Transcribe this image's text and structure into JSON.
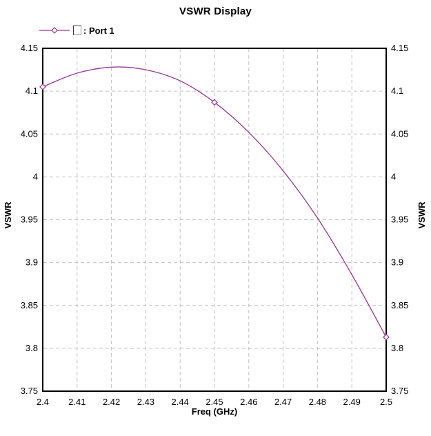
{
  "title": "VSWR Display",
  "legend": {
    "symbol": "diamond-line-marker",
    "box_glyph": "box-glyph",
    "label": ": Port 1",
    "series_name": "Port 1"
  },
  "colors": {
    "curve": "#993399",
    "grid": "#c0c0c0",
    "frame": "#000000",
    "text": "#000000",
    "background": "#ffffff"
  },
  "chart_data": {
    "type": "line",
    "title": "VSWR Display",
    "xlabel": "Freq (GHz)",
    "ylabel_left": "VSWR",
    "ylabel_right": "VSWR",
    "xlim": [
      2.4,
      2.5
    ],
    "ylim": [
      3.75,
      4.15
    ],
    "grid": true,
    "grid_style": "dashed",
    "legend_position": "top-left",
    "x_ticks": [
      2.4,
      2.41,
      2.42,
      2.43,
      2.44,
      2.45,
      2.46,
      2.47,
      2.48,
      2.49,
      2.5
    ],
    "x_tick_labels": [
      "2.4",
      "2.41",
      "2.42",
      "2.43",
      "2.44",
      "2.45",
      "2.46",
      "2.47",
      "2.48",
      "2.49",
      "2.5"
    ],
    "y_ticks": [
      4.15,
      4.1,
      4.05,
      4.0,
      3.95,
      3.9,
      3.85,
      3.8,
      3.75
    ],
    "y_tick_labels": [
      "4.15",
      "4.1",
      "4.05",
      "4",
      "3.95",
      "3.9",
      "3.85",
      "3.8",
      "3.75"
    ],
    "series": [
      {
        "name": "Port 1",
        "marker": "diamond-open",
        "marker_x": [
          2.4,
          2.45,
          2.5
        ],
        "x": [
          2.4,
          2.41,
          2.42,
          2.43,
          2.44,
          2.45,
          2.46,
          2.47,
          2.48,
          2.49,
          2.5
        ],
        "y": [
          4.105,
          4.121,
          4.128,
          4.125,
          4.112,
          4.087,
          4.052,
          4.007,
          3.952,
          3.886,
          3.813
        ]
      }
    ]
  }
}
